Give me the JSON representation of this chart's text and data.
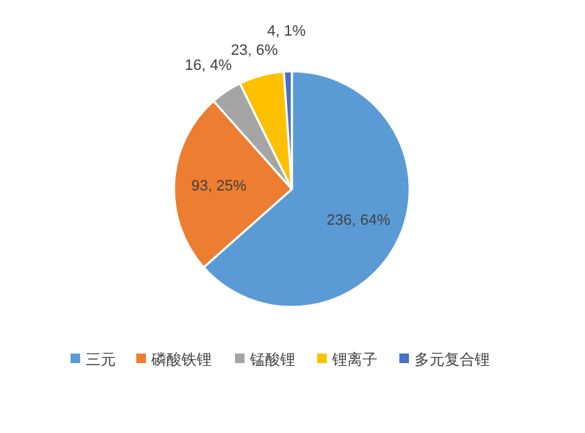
{
  "chart_data": {
    "type": "pie",
    "categories": [
      "三元",
      "磷酸铁锂",
      "锰酸锂",
      "锂离子",
      "多元复合锂"
    ],
    "values": [
      236,
      93,
      16,
      23,
      4
    ],
    "colors": [
      "#5b9bd5",
      "#ed7d31",
      "#a5a5a5",
      "#ffc000",
      "#4472c4"
    ],
    "value_labels": [
      "236, 64%",
      "93, 25%",
      "16, 4%",
      "23, 6%",
      "4, 1%"
    ],
    "legend": "bottom"
  }
}
